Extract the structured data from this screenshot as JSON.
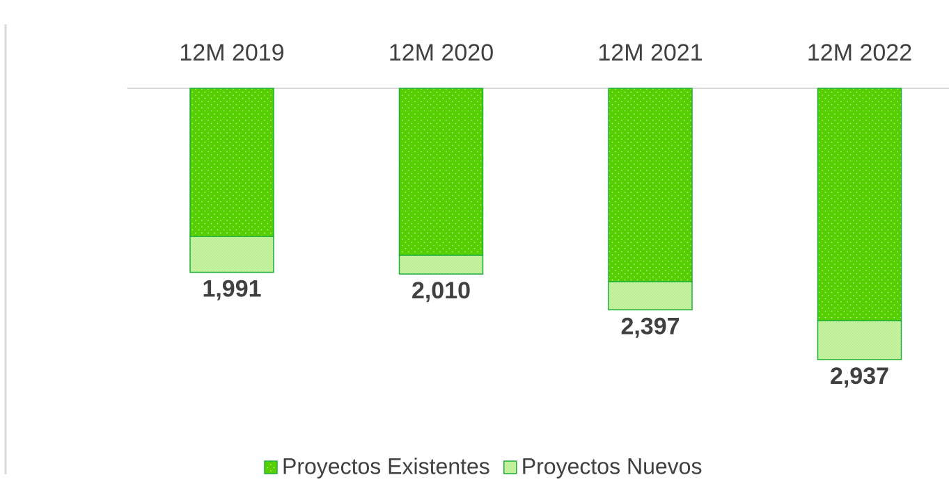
{
  "chart_data": {
    "type": "bar",
    "stacked": true,
    "y_inverted": true,
    "categories": [
      "12M 2019",
      "12M 2020",
      "12M 2021",
      "12M 2022"
    ],
    "series": [
      {
        "name": "Proyectos Existentes",
        "color": "#55cf00",
        "values": [
          1604,
          1807,
          2093,
          2515
        ]
      },
      {
        "name": "Proyectos Nuevos",
        "color": "#b8ee8c",
        "values": [
          387,
          203,
          304,
          422
        ]
      }
    ],
    "totals": [
      1991,
      2010,
      2397,
      2937
    ],
    "value_labels": [
      "1,991",
      "2,010",
      "2,397",
      "2,937"
    ],
    "ylim": [
      0,
      3500
    ]
  }
}
